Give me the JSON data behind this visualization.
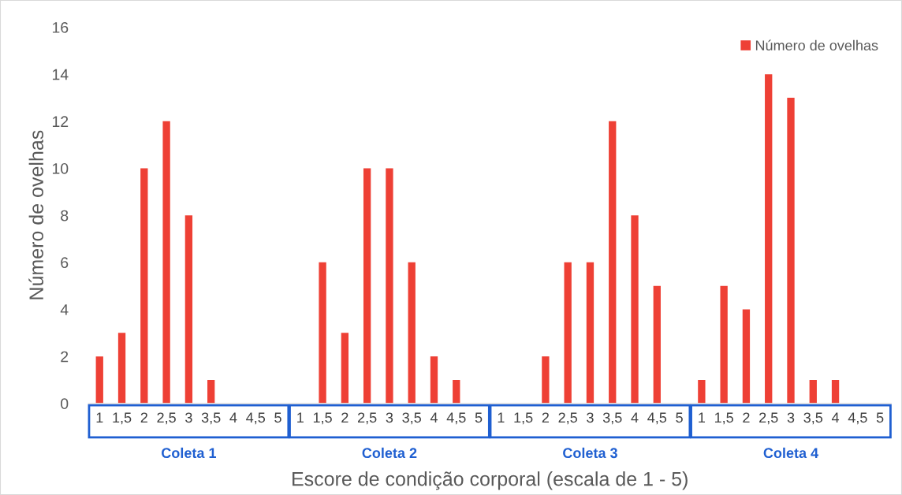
{
  "chart_data": {
    "type": "bar",
    "xlabel": "Escore de condição corporal (escala de 1 - 5)",
    "ylabel": "Número de ovelhas",
    "categories": [
      "1",
      "1,5",
      "2",
      "2,5",
      "3",
      "3,5",
      "4",
      "4,5",
      "5",
      "1",
      "1,5",
      "2",
      "2,5",
      "3",
      "3,5",
      "4",
      "4,5",
      "5",
      "1",
      "1,5",
      "2",
      "2,5",
      "3",
      "3,5",
      "4",
      "4,5",
      "5",
      "1",
      "1,5",
      "2",
      "2,5",
      "3",
      "3,5",
      "4",
      "4,5",
      "5"
    ],
    "series": [
      {
        "name": "Número de ovelhas",
        "color": "#ee4035",
        "values": [
          2,
          3,
          10,
          12,
          8,
          1,
          0,
          0,
          0,
          0,
          6,
          3,
          10,
          10,
          6,
          2,
          1,
          0,
          0,
          0,
          2,
          6,
          6,
          12,
          8,
          5,
          0,
          1,
          5,
          4,
          14,
          13,
          1,
          1,
          0,
          0
        ]
      }
    ],
    "annotations": [
      "Coleta 1",
      "Coleta 2",
      "Coleta 3",
      "Coleta 4"
    ],
    "ylim": [
      0,
      16
    ],
    "yticks": [
      0,
      2,
      4,
      6,
      8,
      10,
      12,
      14,
      16
    ],
    "grid": false,
    "legend": "top right"
  }
}
